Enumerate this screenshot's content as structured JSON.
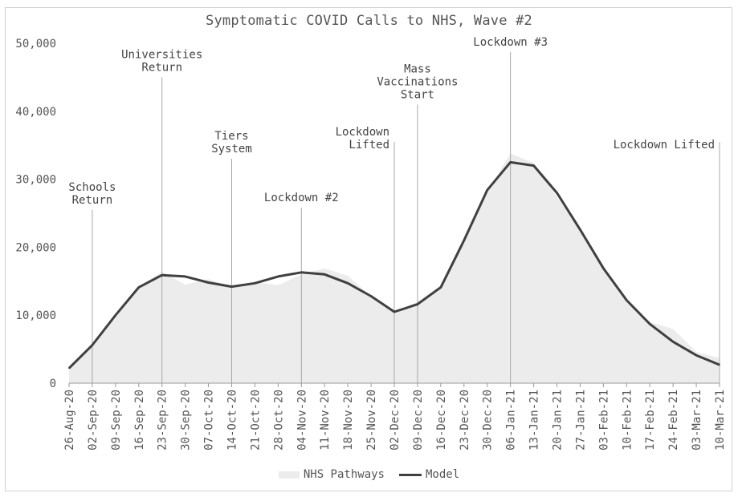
{
  "chart_data": {
    "type": "area",
    "title": "Symptomatic COVID Calls to NHS, Wave #2",
    "xlabel": "",
    "ylabel": "",
    "ylim": [
      0,
      50000
    ],
    "yticks": [
      "0",
      "10,000",
      "20,000",
      "30,000",
      "40,000",
      "50,000"
    ],
    "ytick_values": [
      0,
      10000,
      20000,
      30000,
      40000,
      50000
    ],
    "grid": false,
    "legend_position": "bottom",
    "categories": [
      "26-Aug-20",
      "02-Sep-20",
      "09-Sep-20",
      "16-Sep-20",
      "23-Sep-20",
      "30-Sep-20",
      "07-Oct-20",
      "14-Oct-20",
      "21-Oct-20",
      "28-Oct-20",
      "04-Nov-20",
      "11-Nov-20",
      "18-Nov-20",
      "25-Nov-20",
      "02-Dec-20",
      "09-Dec-20",
      "16-Dec-20",
      "23-Dec-20",
      "30-Dec-20",
      "06-Jan-21",
      "13-Jan-21",
      "20-Jan-21",
      "27-Jan-21",
      "03-Feb-21",
      "10-Feb-21",
      "17-Feb-21",
      "24-Feb-21",
      "03-Mar-21",
      "10-Mar-21"
    ],
    "series": [
      {
        "name": "NHS Pathways",
        "kind": "area",
        "color": "#ececec",
        "values": [
          2400,
          5600,
          9600,
          14200,
          16400,
          14500,
          15300,
          14200,
          14900,
          14400,
          16000,
          16900,
          15800,
          12800,
          10300,
          12000,
          14400,
          20500,
          28100,
          33800,
          32400,
          27400,
          22500,
          17200,
          12000,
          9000,
          8000,
          4600,
          3700
        ]
      },
      {
        "name": "Model",
        "kind": "line",
        "color": "#404040",
        "values": [
          2200,
          5600,
          10000,
          14100,
          15900,
          15700,
          14800,
          14200,
          14700,
          15700,
          16300,
          16000,
          14700,
          12800,
          10500,
          11600,
          14100,
          21000,
          28400,
          32500,
          32000,
          28000,
          22600,
          16900,
          12200,
          8700,
          6100,
          4100,
          2700
        ]
      }
    ],
    "annotations": [
      {
        "lines": [
          "Schools",
          "Return"
        ],
        "x_index": 1,
        "y_top": 25500,
        "align": "center"
      },
      {
        "lines": [
          "Universities",
          "Return"
        ],
        "x_index": 4,
        "y_top": 45000,
        "align": "center"
      },
      {
        "lines": [
          "Tiers",
          "System"
        ],
        "x_index": 7,
        "y_top": 33000,
        "align": "center"
      },
      {
        "lines": [
          "Lockdown #2"
        ],
        "x_index": 10,
        "y_top": 25800,
        "align": "center"
      },
      {
        "lines": [
          "Lockdown",
          "Lifted"
        ],
        "x_index": 14,
        "y_top": 35500,
        "align": "right"
      },
      {
        "lines": [
          "Mass",
          "Vaccinations",
          "Start"
        ],
        "x_index": 15,
        "y_top": 41000,
        "align": "center"
      },
      {
        "lines": [
          "Lockdown #3"
        ],
        "x_index": 19,
        "y_top": 48700,
        "align": "center"
      },
      {
        "lines": [
          "Lockdown Lifted"
        ],
        "x_index": 28,
        "y_top": 35500,
        "align": "right"
      }
    ]
  }
}
